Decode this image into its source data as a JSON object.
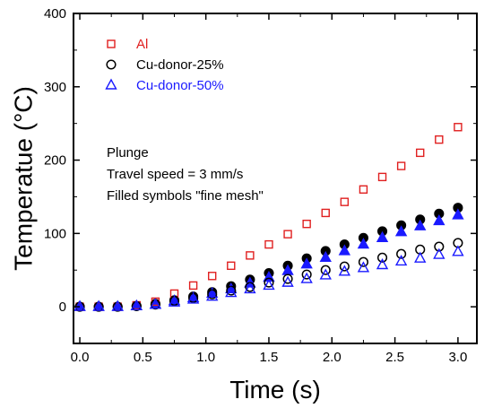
{
  "chart_data": {
    "type": "scatter",
    "xlabel": "Time (s)",
    "ylabel": "Temperatue (°C)",
    "xlim": [
      -0.05,
      3.15
    ],
    "ylim": [
      -50,
      400
    ],
    "x_ticks": [
      0.0,
      0.5,
      1.0,
      1.5,
      2.0,
      2.5,
      3.0
    ],
    "x_tick_labels": [
      "0.0",
      "0.5",
      "1.0",
      "1.5",
      "2.0",
      "2.5",
      "3.0"
    ],
    "y_ticks": [
      0,
      100,
      200,
      300,
      400
    ],
    "y_tick_labels": [
      "0",
      "100",
      "200",
      "300",
      "400"
    ],
    "grid": false,
    "legend_position": "top-left",
    "series": [
      {
        "name": "Al",
        "marker": "square",
        "filled": false,
        "color": "#e02020",
        "x": [
          0,
          0.15,
          0.3,
          0.45,
          0.6,
          0.75,
          0.9,
          1.05,
          1.2,
          1.35,
          1.5,
          1.65,
          1.8,
          1.95,
          2.1,
          2.25,
          2.4,
          2.55,
          2.7,
          2.85,
          3.0
        ],
        "y": [
          0,
          0,
          0,
          2,
          7,
          18,
          29,
          42,
          56,
          70,
          85,
          99,
          113,
          128,
          143,
          160,
          177,
          192,
          210,
          228,
          245
        ]
      },
      {
        "name": "Cu-donor-25%",
        "marker": "circle",
        "filled": false,
        "color": "#000000",
        "x": [
          0,
          0.15,
          0.3,
          0.45,
          0.6,
          0.75,
          0.9,
          1.05,
          1.2,
          1.35,
          1.5,
          1.65,
          1.8,
          1.95,
          2.1,
          2.25,
          2.4,
          2.55,
          2.7,
          2.85,
          3.0
        ],
        "y": [
          0,
          0,
          0,
          1,
          3,
          8,
          12,
          17,
          22,
          27,
          33,
          38,
          44,
          50,
          55,
          61,
          67,
          72,
          78,
          82,
          87
        ]
      },
      {
        "name": "Cu-donor-50%",
        "marker": "triangle",
        "filled": false,
        "color": "#1a1aff",
        "x": [
          0,
          0.15,
          0.3,
          0.45,
          0.6,
          0.75,
          0.9,
          1.05,
          1.2,
          1.35,
          1.5,
          1.65,
          1.8,
          1.95,
          2.1,
          2.25,
          2.4,
          2.55,
          2.7,
          2.85,
          3.0
        ],
        "y": [
          0,
          0,
          0,
          1,
          3,
          6,
          10,
          14,
          19,
          24,
          29,
          33,
          38,
          43,
          48,
          53,
          57,
          62,
          66,
          71,
          75
        ]
      },
      {
        "name": "",
        "marker": "circle",
        "filled": true,
        "color": "#000000",
        "x": [
          0,
          0.15,
          0.3,
          0.45,
          0.6,
          0.75,
          0.9,
          1.05,
          1.2,
          1.35,
          1.5,
          1.65,
          1.8,
          1.95,
          2.1,
          2.25,
          2.4,
          2.55,
          2.7,
          2.85,
          3.0
        ],
        "y": [
          0,
          0,
          0,
          1,
          4,
          9,
          14,
          20,
          28,
          37,
          46,
          56,
          66,
          76,
          85,
          94,
          103,
          111,
          119,
          127,
          135
        ]
      },
      {
        "name": "",
        "marker": "triangle",
        "filled": true,
        "color": "#1a1aff",
        "x": [
          0,
          0.15,
          0.3,
          0.45,
          0.6,
          0.75,
          0.9,
          1.05,
          1.2,
          1.35,
          1.5,
          1.65,
          1.8,
          1.95,
          2.1,
          2.25,
          2.4,
          2.55,
          2.7,
          2.85,
          3.0
        ],
        "y": [
          0,
          0,
          0,
          1,
          3,
          8,
          12,
          18,
          24,
          32,
          40,
          49,
          58,
          67,
          76,
          85,
          94,
          102,
          110,
          117,
          125
        ]
      }
    ],
    "annotations": [
      "Plunge",
      "Travel speed = 3 mm/s",
      "Filled symbols \"fine mesh\""
    ]
  }
}
